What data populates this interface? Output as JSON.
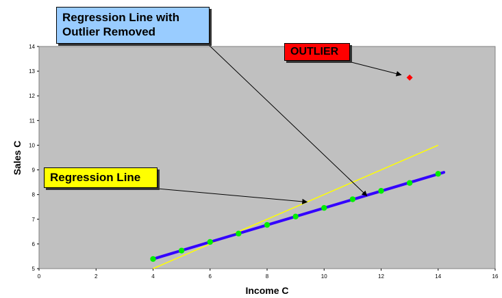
{
  "chart_data": {
    "type": "scatter",
    "xlabel": "Income C",
    "ylabel": "Sales C",
    "xlim": [
      0,
      16
    ],
    "ylim": [
      5,
      14
    ],
    "xticks": [
      0,
      2,
      4,
      6,
      8,
      10,
      12,
      14,
      16
    ],
    "yticks": [
      5,
      6,
      7,
      8,
      9,
      10,
      11,
      12,
      13,
      14
    ],
    "grid": false,
    "plot_background": "#c0c0c0",
    "points": {
      "x": [
        4,
        5,
        6,
        7,
        8,
        9,
        10,
        11,
        12,
        13,
        14
      ],
      "y": [
        5.39,
        5.73,
        6.08,
        6.42,
        6.77,
        7.11,
        7.46,
        7.81,
        8.15,
        8.47,
        8.84
      ],
      "color": "#00ee00"
    },
    "outlier": {
      "x": 13,
      "y": 12.74,
      "color": "#ff0000"
    },
    "lines": [
      {
        "id": "regression-line",
        "x": [
          4,
          14
        ],
        "y": [
          5.0,
          10.0
        ],
        "color": "#ffff00"
      },
      {
        "id": "regression-line-outlier-removed",
        "x": [
          4,
          14.2
        ],
        "y": [
          5.39,
          8.9
        ],
        "color": "#3300ff"
      }
    ],
    "annotations": [
      {
        "id": "removed",
        "text_lines": [
          "Regression Line with",
          "Outlier Removed"
        ],
        "bg": "#99ccff",
        "arrow_to": [
          11.5,
          7.95
        ]
      },
      {
        "id": "outlier",
        "text": "OUTLIER",
        "bg": "#ff0000",
        "arrow_to": [
          12.7,
          12.85
        ]
      },
      {
        "id": "regression",
        "text": "Regression Line",
        "bg": "#ffff00",
        "arrow_to": [
          9.4,
          7.7
        ]
      }
    ]
  }
}
